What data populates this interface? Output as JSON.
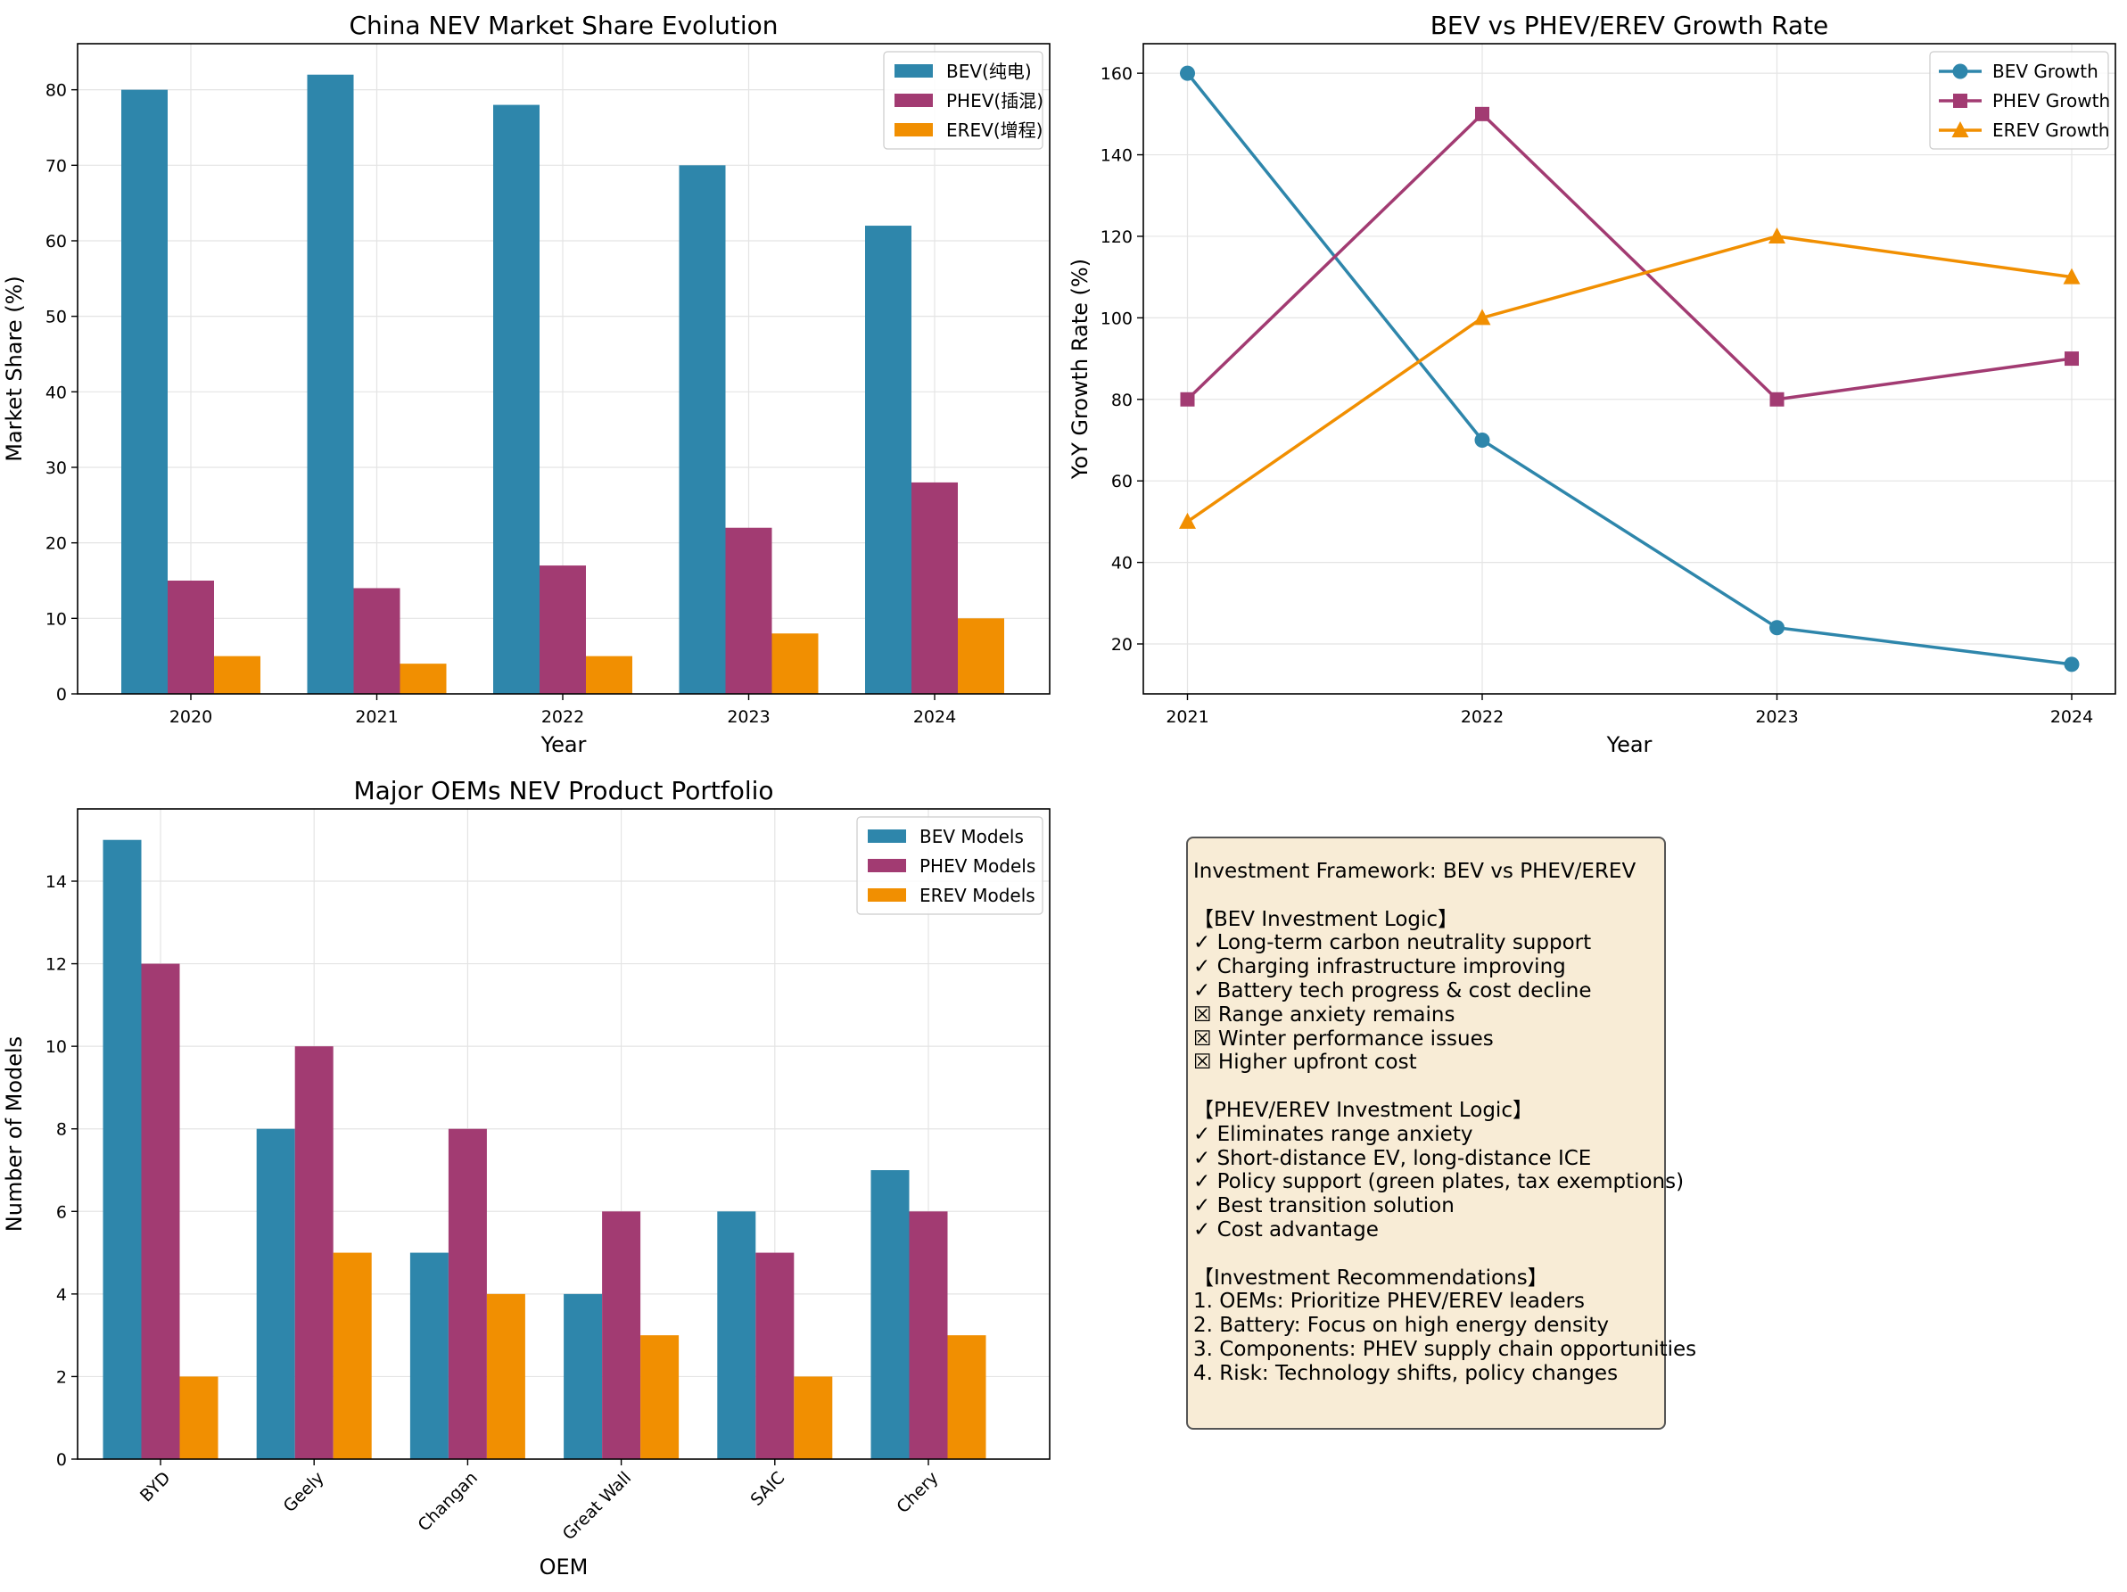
{
  "colors": {
    "bev": "#2e86ab",
    "phev": "#a23b72",
    "erev": "#f18f01",
    "box_bg": "#f8ecd6"
  },
  "chart_data": [
    {
      "type": "bar",
      "title": "China NEV Market Share Evolution",
      "xlabel": "Year",
      "ylabel": "Market Share (%)",
      "categories": [
        "2020",
        "2021",
        "2022",
        "2023",
        "2024"
      ],
      "series": [
        {
          "name": "BEV(纯电)",
          "values": [
            80,
            82,
            78,
            70,
            62
          ]
        },
        {
          "name": "PHEV(插混)",
          "values": [
            15,
            14,
            17,
            22,
            28
          ]
        },
        {
          "name": "EREV(增程)",
          "values": [
            5,
            4,
            5,
            8,
            10
          ]
        }
      ],
      "ylim": [
        0,
        86.1
      ],
      "yticks": [
        0,
        10,
        20,
        30,
        40,
        50,
        60,
        70,
        80
      ],
      "grid": true,
      "legend": "top-right"
    },
    {
      "type": "line",
      "title": "BEV vs PHEV/EREV Growth Rate",
      "xlabel": "Year",
      "ylabel": "YoY Growth Rate (%)",
      "x": [
        "2021",
        "2022",
        "2023",
        "2024"
      ],
      "series": [
        {
          "name": "BEV Growth",
          "marker": "circle",
          "values": [
            160,
            70,
            24,
            15
          ]
        },
        {
          "name": "PHEV Growth",
          "marker": "square",
          "values": [
            80,
            150,
            80,
            90
          ]
        },
        {
          "name": "EREV Growth",
          "marker": "triangle",
          "values": [
            50,
            100,
            120,
            110
          ]
        }
      ],
      "ylim": [
        7.75,
        167.25
      ],
      "yticks": [
        20,
        40,
        60,
        80,
        100,
        120,
        140,
        160
      ],
      "grid": true,
      "legend": "top-right"
    },
    {
      "type": "bar",
      "title": "Major OEMs NEV Product Portfolio",
      "xlabel": "OEM",
      "ylabel": "Number of Models",
      "categories": [
        "BYD",
        "Geely",
        "Changan",
        "Great Wall",
        "SAIC",
        "Chery"
      ],
      "series": [
        {
          "name": "BEV Models",
          "values": [
            15,
            8,
            5,
            4,
            6,
            7
          ]
        },
        {
          "name": "PHEV Models",
          "values": [
            12,
            10,
            8,
            6,
            5,
            6
          ]
        },
        {
          "name": "EREV Models",
          "values": [
            2,
            5,
            4,
            3,
            2,
            3
          ]
        }
      ],
      "ylim": [
        0,
        15.75
      ],
      "yticks": [
        0,
        2,
        4,
        6,
        8,
        10,
        12,
        14
      ],
      "grid": true,
      "legend": "top-right"
    }
  ],
  "framework": {
    "lines": [
      "Investment Framework: BEV vs PHEV/EREV",
      "",
      "【BEV Investment Logic】",
      "✓ Long-term carbon neutrality support",
      "✓ Charging infrastructure improving",
      "✓ Battery tech progress & cost decline",
      "☒ Range anxiety remains",
      "☒ Winter performance issues",
      "☒ Higher upfront cost",
      "",
      "【PHEV/EREV Investment Logic】",
      "✓ Eliminates range anxiety",
      "✓ Short-distance EV, long-distance ICE",
      "✓ Policy support (green plates, tax exemptions)",
      "✓ Best transition solution",
      "✓ Cost advantage",
      "",
      "【Investment Recommendations】",
      "1. OEMs: Prioritize PHEV/EREV leaders",
      "2. Battery: Focus on high energy density",
      "3. Components: PHEV supply chain opportunities",
      "4. Risk: Technology shifts, policy changes"
    ]
  }
}
